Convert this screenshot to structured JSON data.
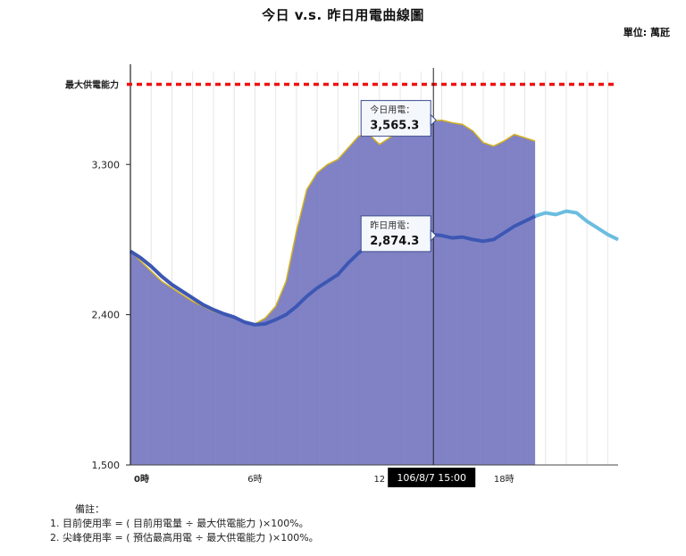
{
  "chart_data": {
    "type": "area",
    "title": "今日 v.s. 昨日用電曲線圖",
    "unit_label": "單位: 萬瓩",
    "x_ticks": [
      "0時",
      "6時",
      "12",
      "18時"
    ],
    "x_tick_hours": [
      0,
      6,
      12,
      18
    ],
    "x_range": [
      0,
      23.5
    ],
    "y_ticks": [
      "1,500",
      "2,400",
      "3,300"
    ],
    "y_tick_values": [
      1500,
      2400,
      3300
    ],
    "ylim": [
      1500,
      3900
    ],
    "grid": "vertical",
    "max_supply": {
      "label": "最大供電能力",
      "value": 3780,
      "color": "#ee1111"
    },
    "cursor": {
      "hour": 14.6,
      "label": "106/8/7 15:00"
    },
    "today_tooltip": {
      "label": "今日用電：",
      "value": "3,565.3"
    },
    "yesterday_tooltip": {
      "label": "昨日用電：",
      "value": "2,874.3"
    },
    "series": [
      {
        "key": "today",
        "color": "#6e71bd",
        "outline_color": "#d4b21f",
        "values": [
          [
            0,
            2780
          ],
          [
            0.5,
            2720
          ],
          [
            1,
            2660
          ],
          [
            1.5,
            2600
          ],
          [
            2,
            2560
          ],
          [
            2.5,
            2520
          ],
          [
            3,
            2480
          ],
          [
            3.5,
            2450
          ],
          [
            4,
            2420
          ],
          [
            4.5,
            2400
          ],
          [
            5,
            2380
          ],
          [
            5.5,
            2350
          ],
          [
            6,
            2345
          ],
          [
            6.5,
            2380
          ],
          [
            7,
            2450
          ],
          [
            7.5,
            2600
          ],
          [
            8,
            2900
          ],
          [
            8.5,
            3150
          ],
          [
            9,
            3250
          ],
          [
            9.5,
            3300
          ],
          [
            10,
            3330
          ],
          [
            10.5,
            3400
          ],
          [
            11,
            3470
          ],
          [
            11.5,
            3480
          ],
          [
            12,
            3420
          ],
          [
            12.5,
            3460
          ],
          [
            13,
            3500
          ],
          [
            13.5,
            3490
          ],
          [
            14,
            3530
          ],
          [
            14.5,
            3560
          ],
          [
            15,
            3565.3
          ],
          [
            15.5,
            3550
          ],
          [
            16,
            3540
          ],
          [
            16.5,
            3500
          ],
          [
            17,
            3430
          ],
          [
            17.5,
            3410
          ],
          [
            18,
            3440
          ],
          [
            18.5,
            3480
          ],
          [
            19,
            3460
          ],
          [
            19.5,
            3440
          ]
        ]
      },
      {
        "key": "yesterday",
        "color": "#6bbde0",
        "overlay_color": "#3e56b3",
        "values": [
          [
            0,
            2780
          ],
          [
            0.5,
            2740
          ],
          [
            1,
            2690
          ],
          [
            1.5,
            2630
          ],
          [
            2,
            2580
          ],
          [
            2.5,
            2540
          ],
          [
            3,
            2500
          ],
          [
            3.5,
            2460
          ],
          [
            4,
            2430
          ],
          [
            4.5,
            2405
          ],
          [
            5,
            2385
          ],
          [
            5.5,
            2355
          ],
          [
            6,
            2340
          ],
          [
            6.5,
            2345
          ],
          [
            7,
            2370
          ],
          [
            7.5,
            2400
          ],
          [
            8,
            2450
          ],
          [
            8.5,
            2510
          ],
          [
            9,
            2560
          ],
          [
            9.5,
            2600
          ],
          [
            10,
            2640
          ],
          [
            10.5,
            2710
          ],
          [
            11,
            2770
          ],
          [
            11.5,
            2820
          ],
          [
            12,
            2850
          ],
          [
            12.5,
            2860
          ],
          [
            13,
            2880
          ],
          [
            13.5,
            2870
          ],
          [
            14,
            2860
          ],
          [
            14.5,
            2880
          ],
          [
            15,
            2874.3
          ],
          [
            15.5,
            2860
          ],
          [
            16,
            2865
          ],
          [
            16.5,
            2850
          ],
          [
            17,
            2840
          ],
          [
            17.5,
            2850
          ],
          [
            18,
            2890
          ],
          [
            18.5,
            2930
          ],
          [
            19,
            2960
          ],
          [
            19.5,
            2990
          ],
          [
            20,
            3010
          ],
          [
            20.5,
            3000
          ],
          [
            21,
            3020
          ],
          [
            21.5,
            3010
          ],
          [
            22,
            2960
          ],
          [
            22.5,
            2920
          ],
          [
            23,
            2880
          ],
          [
            23.5,
            2850
          ]
        ]
      }
    ]
  },
  "notes": {
    "heading": "備註：",
    "items": [
      "1. 目前使用率 = ( 目前用電量 ÷ 最大供電能力 )×100%。",
      "2. 尖峰使用率 = ( 預估最高用電 ÷ 最大供電能力 )×100%。"
    ]
  }
}
